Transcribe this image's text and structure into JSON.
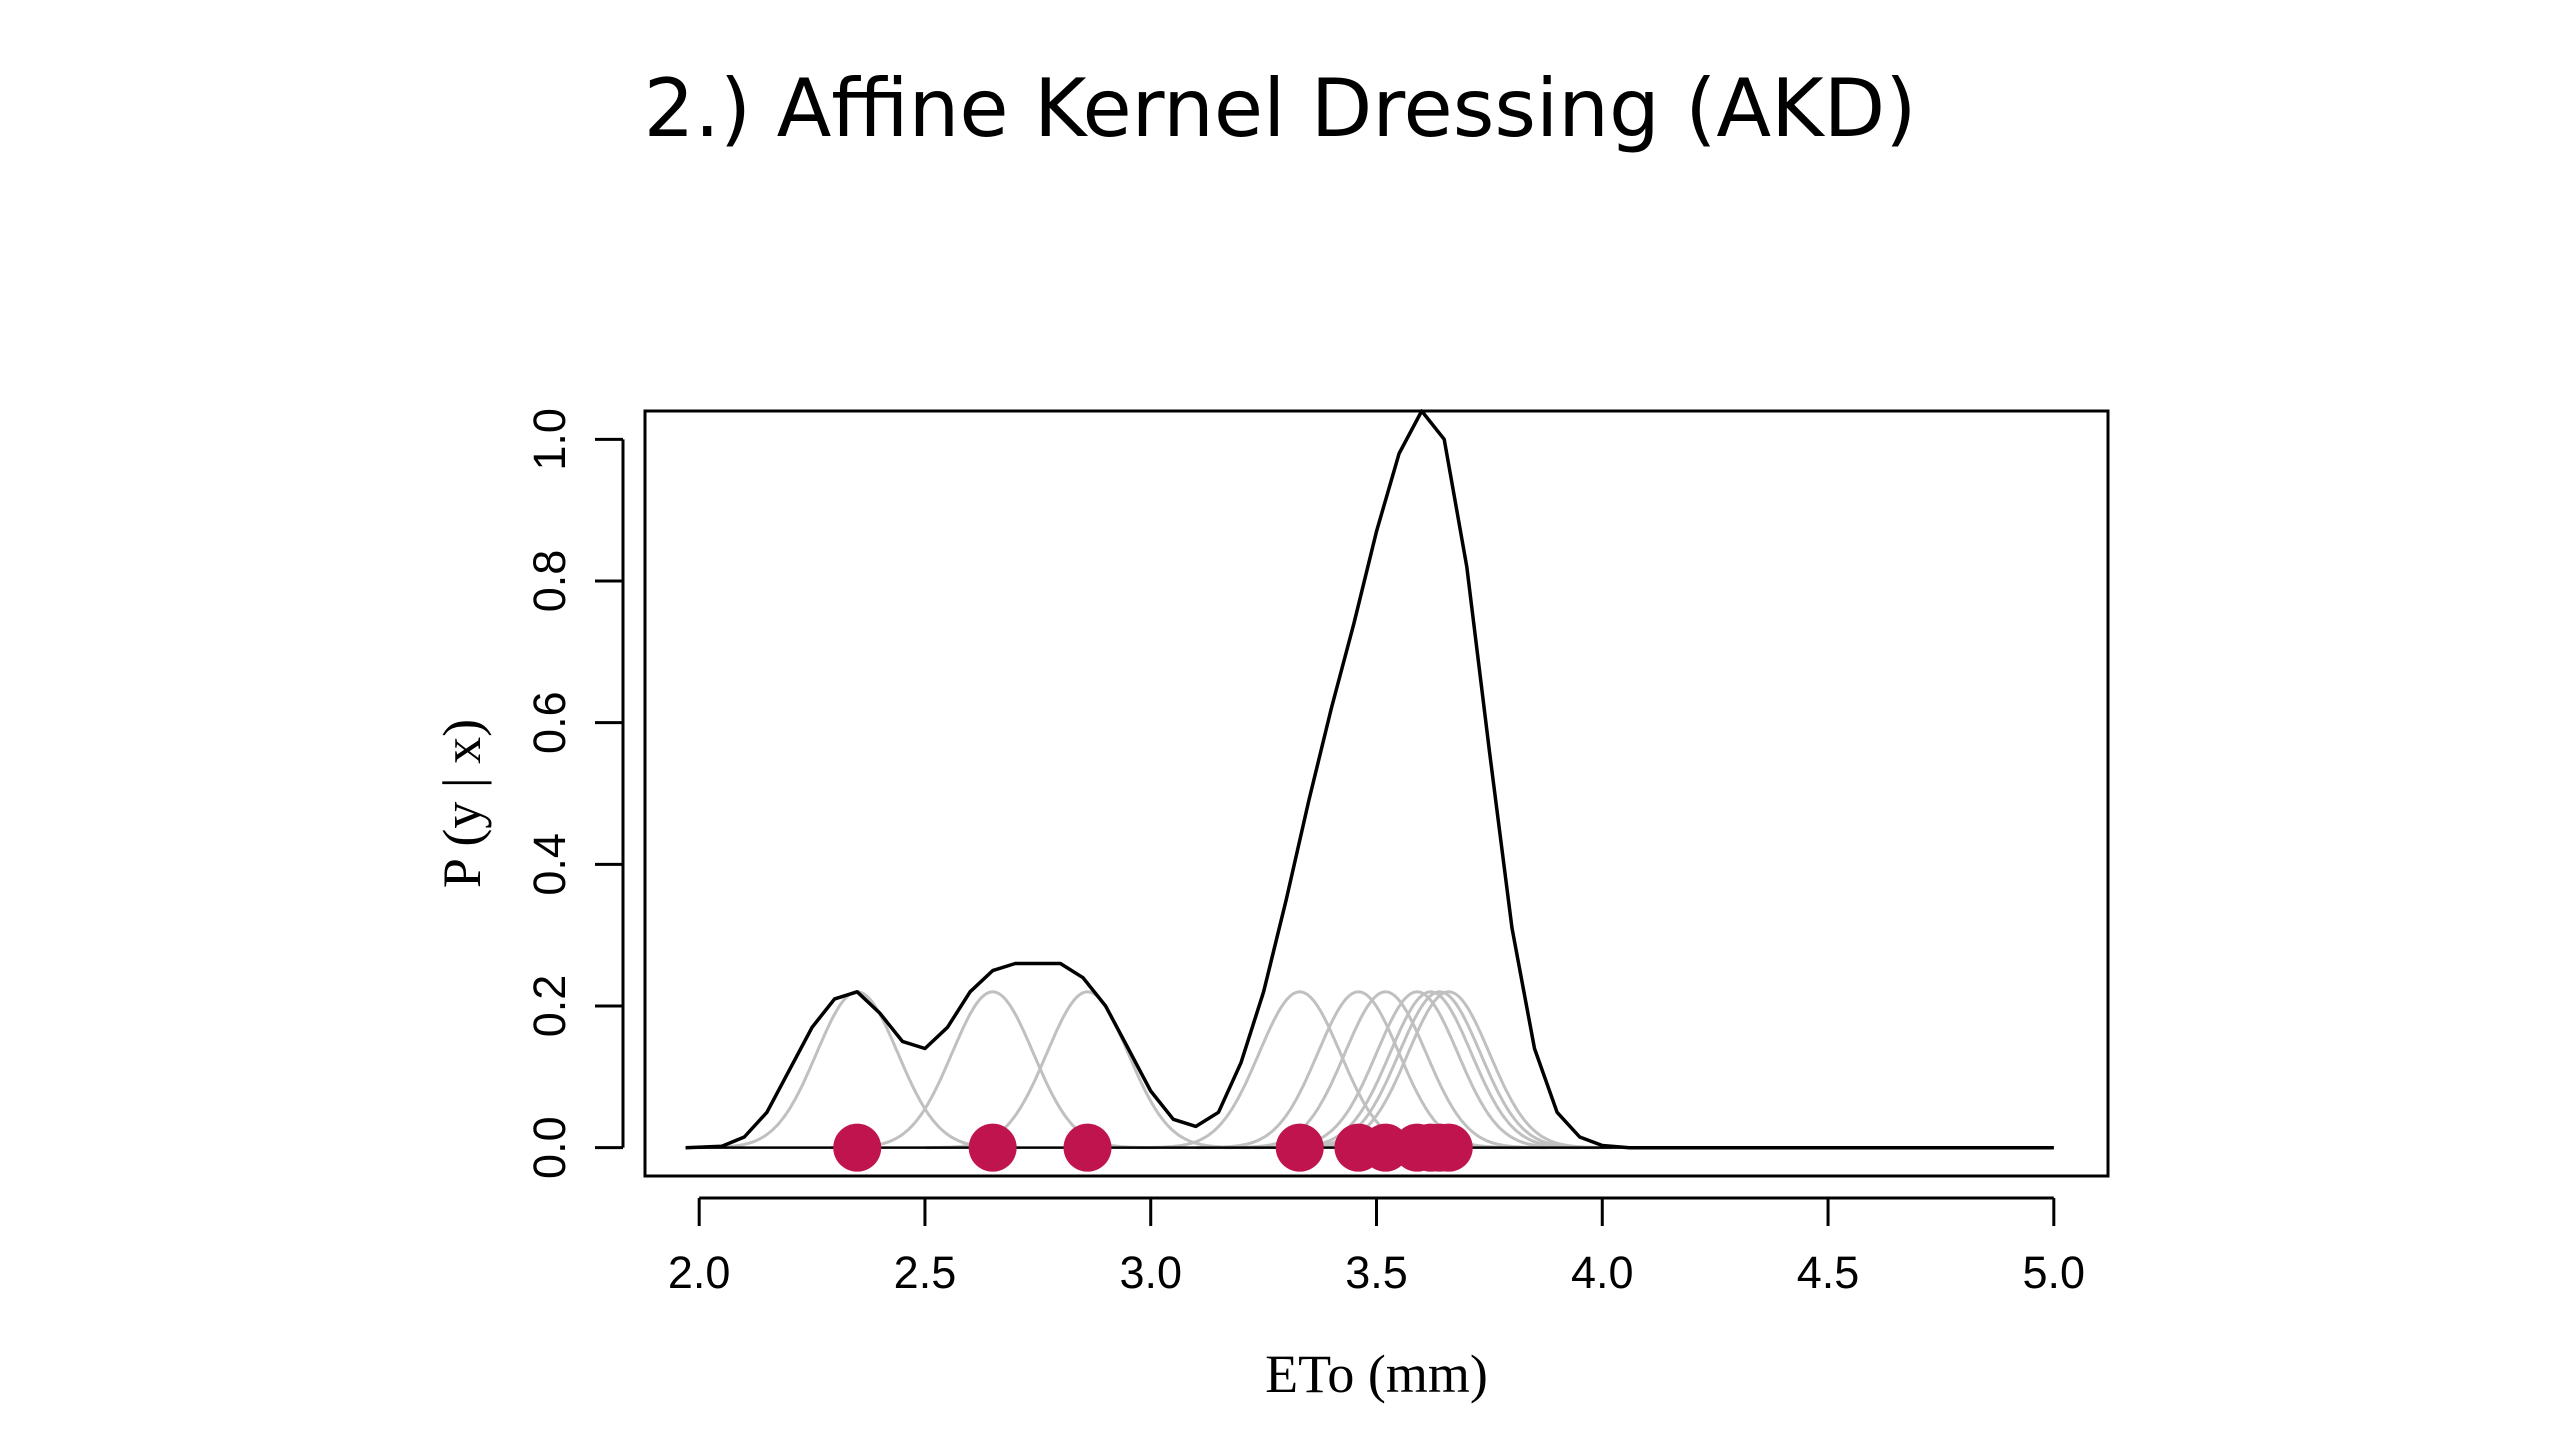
{
  "slide": {
    "title": "2.) Affine Kernel Dressing (AKD)"
  },
  "colors": {
    "density": "#000000",
    "kernel": "#c0c0c0",
    "ensemble_point": "#c0144e"
  },
  "chart_data": {
    "type": "line",
    "xlabel": "ETo (mm)",
    "ylabel": "P (y | x)",
    "xlim": [
      1.88,
      5.12
    ],
    "ylim": [
      -0.04,
      1.04
    ],
    "xticks": [
      2.0,
      2.5,
      3.0,
      3.5,
      4.0,
      4.5,
      5.0
    ],
    "xtick_labels": [
      "2.0",
      "2.5",
      "3.0",
      "3.5",
      "4.0",
      "4.5",
      "5.0"
    ],
    "yticks": [
      0.0,
      0.2,
      0.4,
      0.6,
      0.8,
      1.0
    ],
    "ytick_labels": [
      "0.0",
      "0.2",
      "0.4",
      "0.6",
      "0.8",
      "1.0"
    ],
    "grid": false,
    "box": true,
    "series": [
      {
        "role": "mixture-density",
        "color": "#000000",
        "x": [
          1.97,
          2.05,
          2.1,
          2.15,
          2.2,
          2.25,
          2.3,
          2.35,
          2.4,
          2.45,
          2.5,
          2.55,
          2.6,
          2.65,
          2.7,
          2.75,
          2.8,
          2.85,
          2.9,
          2.95,
          3.0,
          3.05,
          3.1,
          3.15,
          3.2,
          3.25,
          3.3,
          3.35,
          3.4,
          3.45,
          3.5,
          3.55,
          3.6,
          3.65,
          3.7,
          3.75,
          3.8,
          3.85,
          3.9,
          3.95,
          4.0,
          4.06,
          5.0
        ],
        "y": [
          0.0,
          0.002,
          0.015,
          0.05,
          0.11,
          0.17,
          0.21,
          0.22,
          0.19,
          0.15,
          0.14,
          0.17,
          0.22,
          0.25,
          0.26,
          0.26,
          0.26,
          0.24,
          0.2,
          0.14,
          0.08,
          0.04,
          0.03,
          0.05,
          0.12,
          0.22,
          0.35,
          0.49,
          0.62,
          0.74,
          0.87,
          0.98,
          1.04,
          1.0,
          0.82,
          0.56,
          0.31,
          0.14,
          0.05,
          0.015,
          0.003,
          0.0,
          0.0
        ]
      }
    ],
    "kernels": {
      "type": "gaussian",
      "sd": 0.09,
      "peak": 0.22,
      "centers": [
        2.35,
        2.65,
        2.86,
        3.33,
        3.46,
        3.52,
        3.59,
        3.62,
        3.64,
        3.66
      ]
    },
    "ensemble_points": {
      "x": [
        2.35,
        2.65,
        2.86,
        3.33,
        3.46,
        3.52,
        3.59,
        3.62,
        3.64,
        3.66
      ],
      "y": [
        0,
        0,
        0,
        0,
        0,
        0,
        0,
        0,
        0,
        0
      ]
    }
  }
}
